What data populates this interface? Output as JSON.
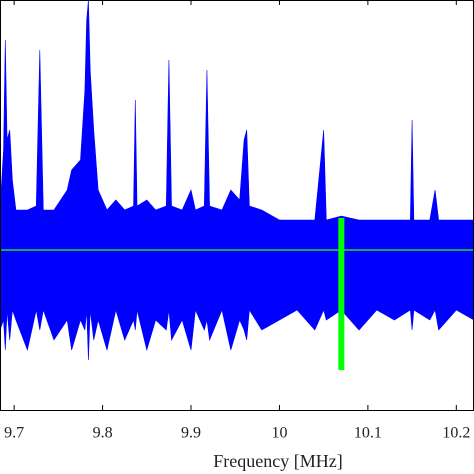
{
  "chart_data": {
    "type": "area",
    "xlabel": "Frequency [MHz]",
    "xlim": [
      9.684,
      10.22
    ],
    "ylim": [
      -0.8,
      1.25
    ],
    "xticks": [
      9.7,
      9.8,
      9.9,
      10,
      10.1,
      10.2
    ],
    "x": [
      9.684,
      9.688,
      9.69,
      9.692,
      9.695,
      9.698,
      9.702,
      9.715,
      9.725,
      9.729,
      9.733,
      9.745,
      9.76,
      9.765,
      9.775,
      9.78,
      9.782,
      9.784,
      9.786,
      9.79,
      9.795,
      9.805,
      9.815,
      9.825,
      9.835,
      9.837,
      9.839,
      9.85,
      9.86,
      9.872,
      9.875,
      9.878,
      9.89,
      9.9,
      9.905,
      9.915,
      9.918,
      9.921,
      9.935,
      9.945,
      9.955,
      9.96,
      9.963,
      9.966,
      9.98,
      10.0,
      10.02,
      10.04,
      10.05,
      10.053,
      10.07,
      10.09,
      10.11,
      10.13,
      10.148,
      10.15,
      10.152,
      10.17,
      10.176,
      10.18,
      10.2,
      10.22
    ],
    "series": [
      {
        "color": "#0000ff",
        "values": [
          0.2,
          0.5,
          1.05,
          0.55,
          0.6,
          0.35,
          0.2,
          0.2,
          0.22,
          1.0,
          0.2,
          0.2,
          0.3,
          0.4,
          0.45,
          0.8,
          1.15,
          1.25,
          0.9,
          0.6,
          0.3,
          0.2,
          0.25,
          0.2,
          0.22,
          0.75,
          0.22,
          0.25,
          0.2,
          0.22,
          0.95,
          0.22,
          0.2,
          0.3,
          0.2,
          0.22,
          0.9,
          0.22,
          0.2,
          0.3,
          0.25,
          0.55,
          0.6,
          0.22,
          0.2,
          0.15,
          0.15,
          0.15,
          0.6,
          0.15,
          0.17,
          0.15,
          0.15,
          0.15,
          0.15,
          0.65,
          0.15,
          0.15,
          0.3,
          0.15,
          0.15,
          0.15
        ]
      },
      {
        "color": "#0000ff",
        "values": [
          -0.4,
          -0.35,
          -0.5,
          -0.3,
          -0.45,
          -0.3,
          -0.35,
          -0.5,
          -0.3,
          -0.4,
          -0.3,
          -0.45,
          -0.35,
          -0.5,
          -0.35,
          -0.4,
          -0.3,
          -0.55,
          -0.3,
          -0.45,
          -0.35,
          -0.5,
          -0.3,
          -0.45,
          -0.35,
          -0.4,
          -0.3,
          -0.5,
          -0.35,
          -0.4,
          -0.3,
          -0.45,
          -0.35,
          -0.5,
          -0.3,
          -0.4,
          -0.35,
          -0.45,
          -0.3,
          -0.5,
          -0.35,
          -0.4,
          -0.45,
          -0.3,
          -0.4,
          -0.35,
          -0.3,
          -0.4,
          -0.3,
          -0.35,
          -0.3,
          -0.4,
          -0.3,
          -0.35,
          -0.3,
          -0.4,
          -0.3,
          -0.35,
          -0.3,
          -0.4,
          -0.3,
          -0.35
        ]
      }
    ],
    "zero_line_color": "#22dd22",
    "highlight": {
      "color": "#00ff00",
      "x": 10.07,
      "values": [
        -0.6,
        0.16
      ]
    }
  }
}
